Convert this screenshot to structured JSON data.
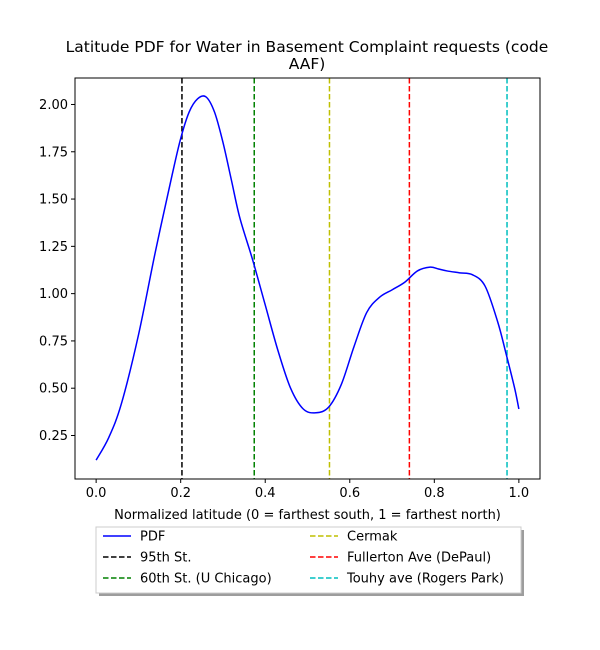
{
  "chart_data": {
    "type": "line",
    "title_lines": [
      "Latitude PDF for Water in Basement Complaint  requests (code",
      "AAF)"
    ],
    "xlabel": "Normalized latitude (0 = farthest south, 1 = farthest north)",
    "ylabel": "",
    "xlim": [
      -0.05,
      1.05
    ],
    "ylim": [
      0.02,
      2.14
    ],
    "xticks": [
      0.0,
      0.2,
      0.4,
      0.6,
      0.8,
      1.0
    ],
    "xtick_labels": [
      "0.0",
      "0.2",
      "0.4",
      "0.6",
      "0.8",
      "1.0"
    ],
    "yticks": [
      0.25,
      0.5,
      0.75,
      1.0,
      1.25,
      1.5,
      1.75,
      2.0
    ],
    "ytick_labels": [
      "0.25",
      "0.50",
      "0.75",
      "1.00",
      "1.25",
      "1.50",
      "1.75",
      "2.00"
    ],
    "grid": false,
    "legend_placement": "below plot",
    "series": [
      {
        "name": "PDF",
        "color": "#0000ff",
        "style": "solid",
        "x": [
          0.0,
          0.03,
          0.06,
          0.1,
          0.14,
          0.18,
          0.2,
          0.22,
          0.24,
          0.26,
          0.28,
          0.3,
          0.32,
          0.34,
          0.37,
          0.4,
          0.43,
          0.46,
          0.49,
          0.52,
          0.55,
          0.58,
          0.61,
          0.64,
          0.67,
          0.7,
          0.73,
          0.76,
          0.79,
          0.81,
          0.83,
          0.86,
          0.89,
          0.92,
          0.95,
          0.97,
          0.99,
          1.0
        ],
        "y": [
          0.12,
          0.24,
          0.42,
          0.78,
          1.22,
          1.63,
          1.82,
          1.96,
          2.03,
          2.04,
          1.96,
          1.8,
          1.6,
          1.4,
          1.18,
          0.94,
          0.7,
          0.5,
          0.39,
          0.37,
          0.4,
          0.52,
          0.72,
          0.9,
          0.98,
          1.02,
          1.06,
          1.12,
          1.14,
          1.13,
          1.12,
          1.11,
          1.1,
          1.04,
          0.85,
          0.68,
          0.5,
          0.39
        ]
      },
      {
        "name": "95th St.",
        "color": "#000000",
        "style": "dashed",
        "x_value": 0.203
      },
      {
        "name": "60th St. (U Chicago)",
        "color": "#008000",
        "style": "dashed",
        "x_value": 0.374
      },
      {
        "name": "Cermak",
        "color": "#bfbf00",
        "style": "dashed",
        "x_value": 0.552
      },
      {
        "name": "Fullerton Ave (DePaul)",
        "color": "#ff0000",
        "style": "dashed",
        "x_value": 0.741
      },
      {
        "name": "Touhy ave (Rogers Park)",
        "color": "#00bfbf",
        "style": "dashed",
        "x_value": 0.972
      }
    ]
  }
}
